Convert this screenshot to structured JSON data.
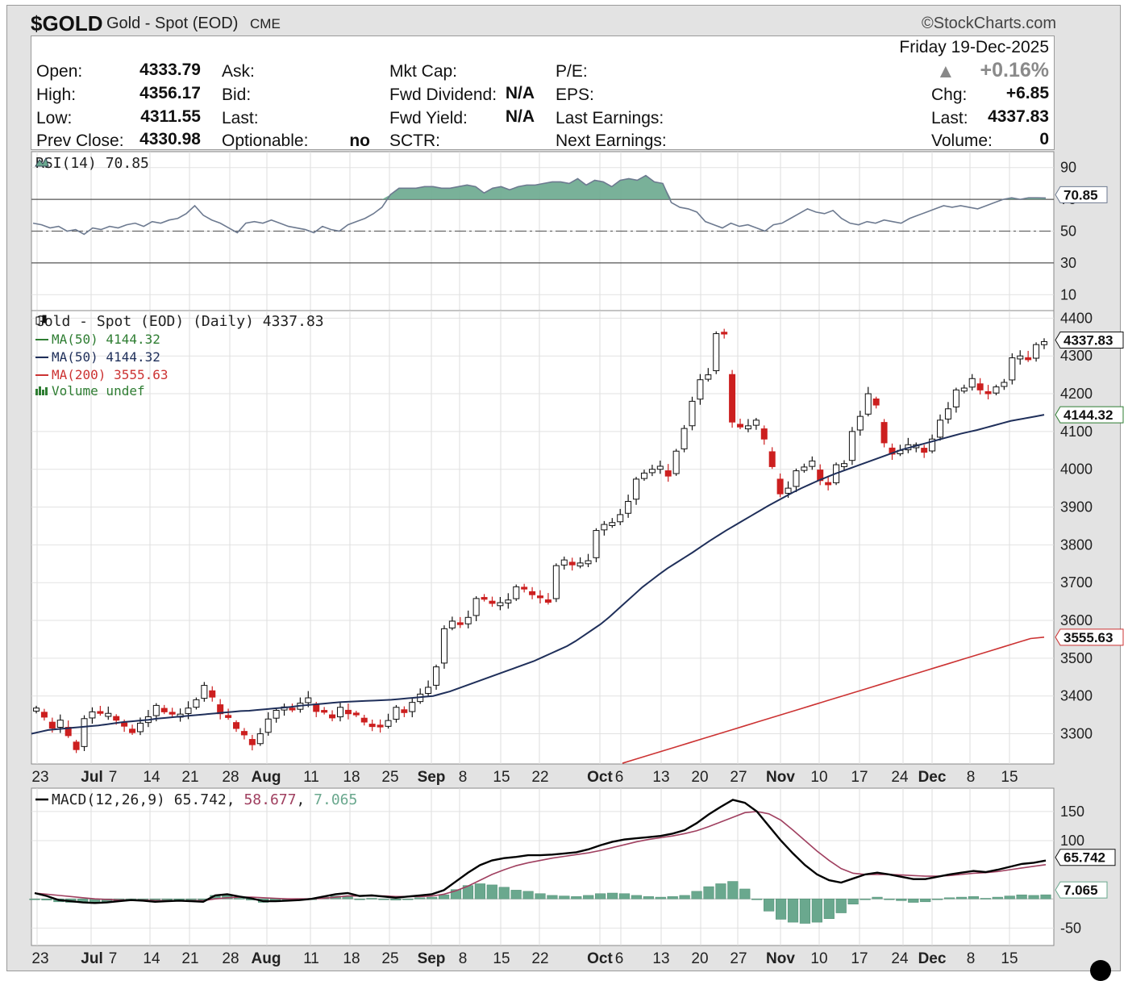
{
  "header": {
    "symbol": "$GOLD",
    "name": "Gold - Spot (EOD)",
    "exchange": "CME",
    "brand": "StockCharts.com"
  },
  "quote": {
    "date": "Friday 19-Dec-2025",
    "pct_change": "+0.16%",
    "fields": [
      {
        "label": "Open:",
        "value": "4333.79"
      },
      {
        "label": "High:",
        "value": "4356.17"
      },
      {
        "label": "Low:",
        "value": "4311.55"
      },
      {
        "label": "Prev Close:",
        "value": "4330.98"
      },
      {
        "label": "Ask:",
        "value": ""
      },
      {
        "label": "Bid:",
        "value": ""
      },
      {
        "label": "Last:",
        "value": ""
      },
      {
        "label": "Optionable:",
        "value": "no"
      },
      {
        "label": "Mkt Cap:",
        "value": ""
      },
      {
        "label": "Fwd Dividend:",
        "value": "N/A"
      },
      {
        "label": "Fwd Yield:",
        "value": "N/A"
      },
      {
        "label": "SCTR:",
        "value": ""
      },
      {
        "label": "P/E:",
        "value": ""
      },
      {
        "label": "EPS:",
        "value": ""
      },
      {
        "label": "Last Earnings:",
        "value": ""
      },
      {
        "label": "Next Earnings:",
        "value": ""
      },
      {
        "label": "Chg:",
        "value": "+6.85"
      },
      {
        "label": "Last:",
        "value": "4337.83"
      },
      {
        "label": "Volume:",
        "value": "0"
      }
    ]
  },
  "colors": {
    "up": "#ffffff",
    "down": "#cc1f1f",
    "ma50": "#1f2f5a",
    "ma200": "#cc3333",
    "rsi_fill": "#6aa88e",
    "macd": "#000000",
    "signal": "#a04060",
    "hist": "#6aa88e"
  },
  "chart_data": [
    {
      "type": "line",
      "panel": "RSI",
      "title": "RSI(14) 70.85",
      "ylim": [
        0,
        100
      ],
      "yticks": [
        10,
        30,
        50,
        70,
        90
      ],
      "reference_lines": [
        30,
        50,
        70
      ],
      "last_value_label": "70.85",
      "values": [
        55,
        54,
        52,
        53,
        50,
        51,
        48,
        52,
        51,
        53,
        52,
        54,
        55,
        53,
        56,
        55,
        57,
        58,
        61,
        66,
        60,
        57,
        55,
        52,
        49,
        55,
        56,
        55,
        57,
        55,
        53,
        52,
        51,
        49,
        53,
        51,
        50,
        54,
        56,
        58,
        61,
        65,
        73,
        77,
        77,
        77,
        78,
        78,
        77,
        77,
        78,
        79,
        78,
        74,
        77,
        78,
        76,
        78,
        79,
        79,
        80,
        81,
        81,
        80,
        83,
        79,
        82,
        81,
        78,
        82,
        83,
        82,
        85,
        81,
        80,
        68,
        65,
        64,
        62,
        56,
        54,
        52,
        55,
        53,
        54,
        52,
        50,
        54,
        55,
        58,
        61,
        64,
        62,
        61,
        63,
        58,
        55,
        54,
        56,
        55,
        57,
        56,
        55,
        58,
        60,
        62,
        64,
        66,
        65,
        66,
        65,
        64,
        66,
        68,
        70,
        71,
        70,
        71,
        71,
        70.85
      ],
      "grid": true
    },
    {
      "type": "candlestick",
      "panel": "Price",
      "title": "Gold - Spot (EOD) (Daily) 4337.83",
      "legend": [
        {
          "name": "MA(50) 4144.32",
          "color": "#2e7d32"
        },
        {
          "name": "MA(50) 4144.32",
          "color": "#1f2f5a"
        },
        {
          "name": "MA(200) 3555.63",
          "color": "#cc3333"
        },
        {
          "name": "Volume undef",
          "color": "#2e7d32"
        }
      ],
      "ylim": [
        3220,
        4420
      ],
      "yticks": [
        3300,
        3400,
        3500,
        3600,
        3700,
        3800,
        3900,
        4000,
        4100,
        4200,
        4300,
        4400
      ],
      "x_labels": [
        "23",
        "Jul",
        "7",
        "14",
        "21",
        "28",
        "Aug",
        "11",
        "18",
        "25",
        "Sep",
        "8",
        "15",
        "22",
        "Oct",
        "6",
        "13",
        "20",
        "27",
        "Nov",
        "10",
        "17",
        "24",
        "Dec",
        "8",
        "15"
      ],
      "last_price_label": "4337.83",
      "ma50_label": "4144.32",
      "ma200_label": "3555.63",
      "closes": [
        3368,
        3344,
        3315,
        3336,
        3295,
        3258,
        3340,
        3358,
        3354,
        3354,
        3336,
        3320,
        3303,
        3328,
        3345,
        3375,
        3358,
        3352,
        3352,
        3368,
        3390,
        3428,
        3397,
        3353,
        3343,
        3314,
        3297,
        3271,
        3300,
        3339,
        3362,
        3371,
        3363,
        3381,
        3395,
        3359,
        3357,
        3342,
        3370,
        3353,
        3350,
        3331,
        3319,
        3318,
        3335,
        3370,
        3356,
        3383,
        3405,
        3423,
        3477,
        3578,
        3598,
        3589,
        3608,
        3658,
        3656,
        3645,
        3647,
        3654,
        3689,
        3683,
        3668,
        3660,
        3648,
        3745,
        3760,
        3747,
        3752,
        3758,
        3838,
        3854,
        3859,
        3880,
        3915,
        3974,
        3990,
        4000,
        4008,
        3982,
        4048,
        4108,
        4180,
        4237,
        4250,
        4359,
        4358,
        4125,
        4112,
        4115,
        4130,
        4080,
        4007,
        3935,
        3950,
        3996,
        4006,
        4022,
        3970,
        3959,
        4012,
        4015,
        4100,
        4140,
        4200,
        4170,
        4070,
        4040,
        4050,
        4065,
        4065,
        4045,
        4080,
        4130,
        4160,
        4210,
        4215,
        4240,
        4210,
        4200,
        4218,
        4230,
        4295,
        4300,
        4290,
        4330,
        4337.83
      ],
      "ma50": [
        3300,
        3305,
        3310,
        3312,
        3314,
        3316,
        3318,
        3320,
        3322,
        3325,
        3328,
        3331,
        3333,
        3335,
        3337,
        3340,
        3342,
        3344,
        3346,
        3348,
        3350,
        3352,
        3354,
        3356,
        3358,
        3360,
        3361,
        3363,
        3365,
        3367,
        3369,
        3371,
        3374,
        3376,
        3378,
        3380,
        3382,
        3384,
        3385,
        3386,
        3387,
        3388,
        3389,
        3390,
        3392,
        3394,
        3396,
        3398,
        3400,
        3406,
        3412,
        3420,
        3428,
        3436,
        3444,
        3452,
        3460,
        3468,
        3476,
        3484,
        3492,
        3502,
        3512,
        3522,
        3532,
        3545,
        3560,
        3575,
        3590,
        3608,
        3628,
        3648,
        3668,
        3688,
        3705,
        3722,
        3738,
        3752,
        3766,
        3780,
        3795,
        3810,
        3824,
        3838,
        3851,
        3864,
        3877,
        3890,
        3903,
        3915,
        3927,
        3939,
        3950,
        3960,
        3970,
        3979,
        3988,
        3996,
        4004,
        4012,
        4020,
        4028,
        4036,
        4044,
        4052,
        4058,
        4064,
        4070,
        4076,
        4082,
        4088,
        4094,
        4099,
        4104,
        4110,
        4116,
        4122,
        4128,
        4132,
        4136,
        4140,
        4144.32
      ],
      "ma200": [
        3222,
        3233,
        3244,
        3255,
        3266,
        3277,
        3288,
        3299,
        3310,
        3321,
        3332,
        3343,
        3354,
        3365,
        3376,
        3387,
        3398,
        3409,
        3420,
        3431,
        3442,
        3453,
        3464,
        3475,
        3486,
        3497,
        3508,
        3519,
        3530,
        3541,
        3552,
        3555.63
      ],
      "grid": true
    },
    {
      "type": "line",
      "panel": "MACD",
      "title": "MACD(12,26,9)",
      "series_labels": [
        "65.742",
        "58.677",
        "7.065"
      ],
      "ylim": [
        -80,
        190
      ],
      "yticks": [
        -50,
        100,
        150
      ],
      "macd": [
        10,
        5,
        -2,
        -4,
        -6,
        -7,
        -6,
        -4,
        -2,
        -3,
        -5,
        -4,
        -3,
        -4,
        -5,
        6,
        8,
        4,
        1,
        -4,
        -4,
        -3,
        -2,
        0,
        4,
        8,
        10,
        5,
        6,
        4,
        2,
        4,
        6,
        8,
        15,
        30,
        45,
        58,
        66,
        70,
        72,
        75,
        75,
        76,
        78,
        80,
        85,
        92,
        98,
        102,
        104,
        106,
        108,
        112,
        118,
        130,
        145,
        158,
        170,
        165,
        150,
        125,
        100,
        78,
        58,
        42,
        32,
        28,
        35,
        42,
        45,
        42,
        38,
        34,
        34,
        38,
        42,
        45,
        48,
        46,
        50,
        55,
        60,
        62,
        65.742
      ],
      "signal": [
        10,
        8,
        6,
        4,
        2,
        0,
        -1,
        -2,
        -2,
        -2,
        -3,
        -3,
        -3,
        -3,
        -3,
        0,
        2,
        3,
        3,
        2,
        1,
        0,
        0,
        0,
        1,
        3,
        5,
        5,
        5,
        5,
        4,
        4,
        4,
        5,
        8,
        14,
        22,
        32,
        42,
        50,
        57,
        62,
        66,
        70,
        73,
        76,
        79,
        83,
        88,
        93,
        98,
        102,
        105,
        108,
        112,
        117,
        124,
        132,
        140,
        148,
        150,
        146,
        135,
        118,
        100,
        82,
        66,
        52,
        44,
        42,
        42,
        42,
        41,
        40,
        39,
        39,
        40,
        42,
        44,
        45,
        47,
        50,
        53,
        56,
        58.677
      ],
      "hist": [
        0,
        -2,
        -5,
        -6,
        -6,
        -6,
        -5,
        -3,
        -2,
        -1,
        -1,
        -1,
        0,
        0,
        -2,
        6,
        6,
        1,
        -2,
        -6,
        -5,
        -3,
        -2,
        0,
        3,
        5,
        5,
        0,
        1,
        -1,
        -2,
        0,
        2,
        3,
        7,
        16,
        23,
        26,
        24,
        20,
        15,
        13,
        9,
        6,
        5,
        4,
        6,
        9,
        10,
        9,
        6,
        4,
        3,
        4,
        6,
        13,
        21,
        26,
        30,
        17,
        0,
        -21,
        -35,
        -40,
        -42,
        -40,
        -34,
        -24,
        -9,
        0,
        3,
        0,
        -3,
        -6,
        -5,
        -1,
        2,
        3,
        4,
        1,
        3,
        5,
        7,
        6,
        7.065
      ],
      "grid": true
    }
  ]
}
